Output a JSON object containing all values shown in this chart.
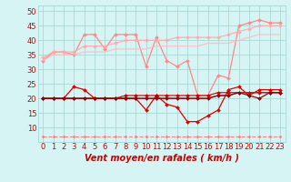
{
  "xlabel": "Vent moyen/en rafales ( km/h )",
  "x": [
    0,
    1,
    2,
    3,
    4,
    5,
    6,
    7,
    8,
    9,
    10,
    11,
    12,
    13,
    14,
    15,
    16,
    17,
    18,
    19,
    20,
    21,
    22,
    23
  ],
  "series": [
    {
      "name": "rafales_max",
      "color": "#ff8888",
      "alpha": 1.0,
      "lw": 0.9,
      "marker": "D",
      "markersize": 2.0,
      "linestyle": "-",
      "y": [
        33,
        36,
        36,
        35,
        42,
        42,
        37,
        42,
        42,
        42,
        31,
        41,
        33,
        31,
        33,
        21,
        21,
        28,
        27,
        45,
        46,
        47,
        46,
        46
      ]
    },
    {
      "name": "rafales_mean_upper",
      "color": "#ffaaaa",
      "alpha": 0.9,
      "lw": 0.9,
      "marker": "D",
      "markersize": 2.0,
      "linestyle": "-",
      "y": [
        34,
        36,
        36,
        36,
        38,
        38,
        38,
        39,
        40,
        40,
        40,
        40,
        40,
        41,
        41,
        41,
        41,
        41,
        42,
        43,
        44,
        45,
        45,
        45
      ]
    },
    {
      "name": "rafales_mean_lower",
      "color": "#ffbbbb",
      "alpha": 0.85,
      "lw": 0.9,
      "marker": null,
      "markersize": 0,
      "linestyle": "-",
      "y": [
        33,
        35,
        35,
        35,
        36,
        36,
        36,
        37,
        37,
        37,
        37,
        38,
        38,
        38,
        38,
        38,
        39,
        39,
        39,
        40,
        41,
        42,
        42,
        42
      ]
    },
    {
      "name": "vent_max",
      "color": "#dd0000",
      "alpha": 1.0,
      "lw": 0.9,
      "marker": "D",
      "markersize": 2.0,
      "linestyle": "-",
      "y": [
        20,
        20,
        20,
        24,
        23,
        20,
        20,
        20,
        20,
        20,
        16,
        21,
        18,
        17,
        12,
        12,
        14,
        16,
        23,
        24,
        21,
        23,
        23,
        23
      ]
    },
    {
      "name": "vent_mean_upper",
      "color": "#bb0000",
      "alpha": 0.9,
      "lw": 0.9,
      "marker": "D",
      "markersize": 2.0,
      "linestyle": "-",
      "y": [
        20,
        20,
        20,
        20,
        20,
        20,
        20,
        20,
        21,
        21,
        21,
        21,
        21,
        21,
        21,
        21,
        21,
        22,
        22,
        22,
        22,
        22,
        22,
        22
      ]
    },
    {
      "name": "vent_mean_lower",
      "color": "#cc1111",
      "alpha": 0.8,
      "lw": 0.9,
      "marker": null,
      "markersize": 0,
      "linestyle": "-",
      "y": [
        20,
        20,
        20,
        20,
        20,
        20,
        20,
        20,
        20,
        20,
        20,
        20,
        20,
        20,
        20,
        20,
        20,
        21,
        21,
        22,
        22,
        22,
        22,
        22
      ]
    },
    {
      "name": "vent_min",
      "color": "#990000",
      "alpha": 1.0,
      "lw": 0.9,
      "marker": "D",
      "markersize": 2.0,
      "linestyle": "-",
      "y": [
        20,
        20,
        20,
        20,
        20,
        20,
        20,
        20,
        20,
        20,
        20,
        20,
        20,
        20,
        20,
        20,
        20,
        21,
        21,
        22,
        21,
        20,
        22,
        22
      ]
    },
    {
      "name": "dashed_bottom",
      "color": "#ff7777",
      "alpha": 0.9,
      "lw": 0.8,
      "marker": "D",
      "markersize": 1.5,
      "linestyle": "--",
      "y": [
        7,
        7,
        7,
        7,
        7,
        7,
        7,
        7,
        7,
        7,
        7,
        7,
        7,
        7,
        7,
        7,
        7,
        7,
        7,
        7,
        7,
        7,
        7,
        7
      ]
    }
  ],
  "ylim": [
    5,
    52
  ],
  "yticks": [
    10,
    15,
    20,
    25,
    30,
    35,
    40,
    45,
    50
  ],
  "bg_color": "#d6f4f4",
  "grid_color": "#aad8d8",
  "tick_label_color": "#cc0000",
  "axis_label_color": "#cc0000",
  "axis_label_fontsize": 7,
  "tick_fontsize": 6
}
